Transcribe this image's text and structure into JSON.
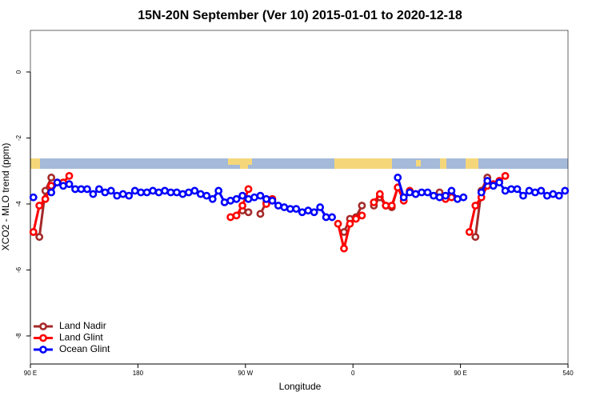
{
  "chart_data": {
    "type": "line",
    "title": "15N-20N September (Ver 10)   2015-01-01 to 2020-12-18",
    "x_label": "Longitude",
    "y_label": "XCO2 - MLO trend (ppm)",
    "xlim": [
      90,
      540
    ],
    "ylim": [
      -8.85,
      1.26
    ],
    "xticks": [
      {
        "value": 90,
        "label": "90 E"
      },
      180,
      {
        "value": 270,
        "label": "90 W"
      },
      {
        "value": 360,
        "label": "0"
      },
      {
        "value": 450,
        "label": "90 E"
      },
      540
    ],
    "yticks": [
      0,
      -2,
      -4,
      -6,
      -8
    ],
    "legend": "bottom-left",
    "series": [
      {
        "name": "Land Nadir",
        "color": "#a52a2a",
        "x": [
          92.5,
          97.5,
          102.5,
          107.5,
          112.5,
          267.5,
          272.5,
          277.5,
          282.5,
          287.5,
          292.5,
          352.5,
          357.5,
          362.5,
          367.5,
          372.5,
          377.5,
          382.5,
          387.5,
          392.5,
          397.5,
          402.5,
          432.5,
          437.5,
          462.5,
          467.5,
          472.5
        ],
        "values": [
          -4.85,
          -5.0,
          -3.6,
          -3.2,
          null,
          -4.2,
          -4.25,
          null,
          -4.3,
          -3.95,
          null,
          -4.85,
          -4.45,
          -4.4,
          -4.05,
          null,
          -4.05,
          -3.8,
          -4.05,
          -4.1,
          -3.5,
          null,
          -3.65,
          null,
          -5.0,
          -3.6,
          -3.2
        ]
      },
      {
        "name": "Land Glint",
        "color": "#ff0000",
        "x": [
          92.5,
          97.5,
          102.5,
          107.5,
          112.5,
          117.5,
          122.5,
          127.5,
          257.5,
          262.5,
          267.5,
          272.5,
          277.5,
          287.5,
          292.5,
          297.5,
          347.5,
          352.5,
          357.5,
          362.5,
          367.5,
          372.5,
          377.5,
          382.5,
          387.5,
          392.5,
          397.5,
          402.5,
          407.5,
          412.5,
          417.5,
          437.5,
          442.5,
          447.5,
          457.5,
          462.5,
          467.5,
          472.5,
          477.5,
          482.5,
          487.5
        ],
        "values": [
          -4.85,
          -4.05,
          -3.85,
          -3.45,
          -3.35,
          -3.35,
          -3.15,
          null,
          -4.4,
          -4.35,
          -4.05,
          -3.55,
          null,
          -4.0,
          -3.85,
          null,
          -4.6,
          -5.35,
          -4.6,
          -4.45,
          -4.35,
          null,
          -3.95,
          -3.7,
          -4.05,
          -4.05,
          -3.5,
          -3.9,
          -3.6,
          -3.7,
          null,
          -3.85,
          -3.8,
          null,
          -4.85,
          -4.05,
          -3.8,
          -3.45,
          -3.4,
          -3.3,
          -3.15
        ]
      },
      {
        "name": "Ocean Glint",
        "color": "#0000ff",
        "x": [
          92.5,
          97.5,
          107.5,
          112.5,
          117.5,
          122.5,
          127.5,
          132.5,
          137.5,
          142.5,
          147.5,
          152.5,
          157.5,
          162.5,
          167.5,
          172.5,
          177.5,
          182.5,
          187.5,
          192.5,
          197.5,
          202.5,
          207.5,
          212.5,
          217.5,
          222.5,
          227.5,
          232.5,
          237.5,
          242.5,
          247.5,
          252.5,
          257.5,
          262.5,
          267.5,
          272.5,
          277.5,
          282.5,
          287.5,
          292.5,
          297.5,
          302.5,
          307.5,
          312.5,
          317.5,
          322.5,
          327.5,
          332.5,
          337.5,
          342.5,
          347.5,
          397.5,
          402.5,
          407.5,
          412.5,
          417.5,
          422.5,
          427.5,
          432.5,
          437.5,
          442.5,
          447.5,
          452.5,
          457.5,
          467.5,
          472.5,
          477.5,
          482.5,
          487.5,
          492.5,
          497.5,
          502.5,
          507.5,
          512.5,
          517.5,
          522.5,
          527.5,
          532.5,
          537.5
        ],
        "values": [
          -3.8,
          null,
          -3.65,
          -3.35,
          -3.45,
          -3.4,
          -3.55,
          -3.55,
          -3.55,
          -3.7,
          -3.55,
          -3.65,
          -3.6,
          -3.75,
          -3.7,
          -3.75,
          -3.6,
          -3.65,
          -3.65,
          -3.6,
          -3.65,
          -3.6,
          -3.65,
          -3.65,
          -3.7,
          -3.65,
          -3.6,
          -3.7,
          -3.75,
          -3.85,
          -3.6,
          -3.95,
          -3.9,
          -3.85,
          -3.75,
          -3.85,
          -3.8,
          -3.75,
          -3.85,
          -3.9,
          -4.05,
          -4.1,
          -4.15,
          -4.15,
          -4.25,
          -4.2,
          -4.25,
          -4.1,
          -4.4,
          -4.4,
          null,
          -3.2,
          -3.8,
          -3.65,
          -3.7,
          -3.65,
          -3.65,
          -3.75,
          -3.8,
          -3.75,
          -3.6,
          -3.85,
          -3.8,
          null,
          -3.65,
          -3.3,
          -3.45,
          -3.35,
          -3.6,
          -3.55,
          -3.55,
          -3.75,
          -3.6,
          -3.65,
          -3.6,
          -3.75,
          -3.7,
          -3.75,
          -3.6
        ]
      }
    ]
  }
}
